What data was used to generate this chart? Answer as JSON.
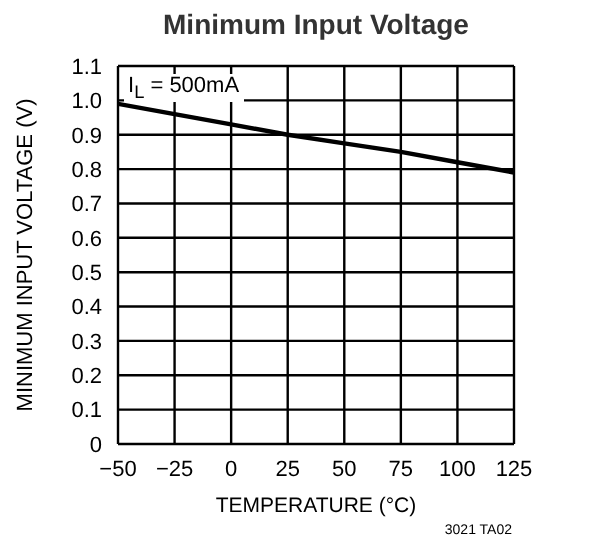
{
  "chart_data": {
    "type": "line",
    "title": "Minimum Input Voltage",
    "xlabel": "TEMPERATURE (°C)",
    "ylabel": "MINIMUM INPUT VOLTAGE (V)",
    "x": [
      -50,
      -25,
      0,
      25,
      50,
      75,
      100,
      125
    ],
    "series": [
      {
        "color": "#000000",
        "values": [
          0.99,
          0.96,
          0.93,
          0.9,
          0.875,
          0.85,
          0.82,
          0.79
        ]
      }
    ],
    "xlim": [
      -50,
      125
    ],
    "xticks": [
      {
        "value": -50,
        "label": "−50"
      },
      {
        "value": -25,
        "label": "−25"
      },
      0,
      25,
      50,
      75,
      100,
      125
    ],
    "ylim": [
      0,
      1.1
    ],
    "yticks": [
      0,
      0.1,
      0.2,
      0.3,
      0.4,
      0.5,
      0.6,
      0.7,
      0.8,
      0.9,
      {
        "value": 1.0,
        "label": "1.0"
      },
      1.1
    ],
    "grid": true,
    "marker": "none",
    "line_style": "solid",
    "annotations": [
      "I$_{L}$ = 500mA",
      "3021 TA02"
    ]
  }
}
